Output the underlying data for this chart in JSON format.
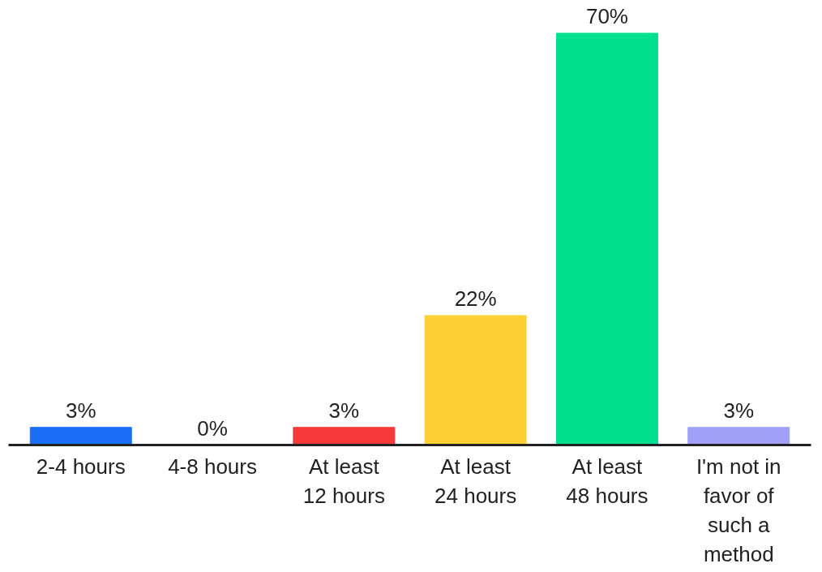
{
  "chart_data": {
    "type": "bar",
    "categories": [
      "2-4 hours",
      "4-8 hours",
      "At least 12 hours",
      "At least 24 hours",
      "At least 48 hours",
      "I'm not in favor of such a method"
    ],
    "values": [
      3,
      0,
      3,
      22,
      70,
      3
    ],
    "colors": [
      "#1a6ef5",
      "#cccccc",
      "#f53a3a",
      "#fdd033",
      "#00e08e",
      "#a0a0f8"
    ],
    "value_labels": [
      "3%",
      "0%",
      "3%",
      "22%",
      "70%",
      "3%"
    ]
  }
}
